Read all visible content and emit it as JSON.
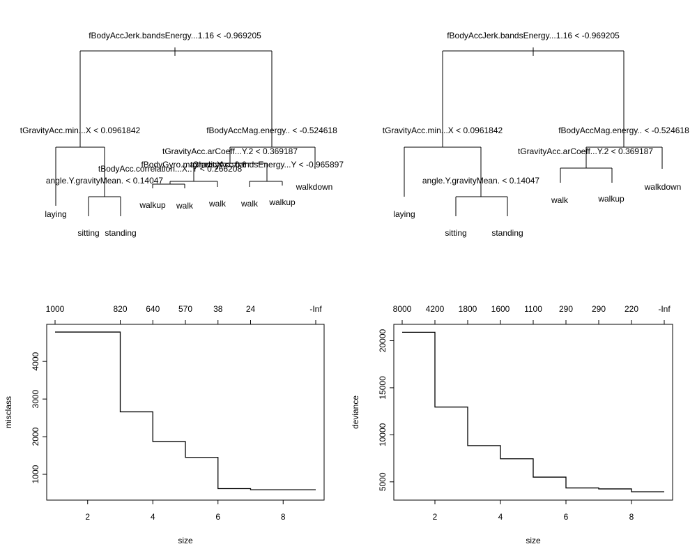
{
  "chart_data": [
    {
      "type": "tree",
      "nodes": [
        {
          "id": "root",
          "label": "fBodyAccJerk.bandsEnergy...1.16 < -0.969205"
        },
        {
          "id": "L",
          "label": "tGravityAcc.min...X < 0.0961842"
        },
        {
          "id": "R",
          "label": "fBodyAccMag.energy.. < -0.524618"
        },
        {
          "id": "LR",
          "label": "angle.Y.gravityMean. < 0.14047"
        },
        {
          "id": "RL",
          "label": "tGravityAcc.arCoeff...Y.2 < 0.369187"
        },
        {
          "id": "RLL",
          "label": "tBodyAcc.correlation...X..Y < 0.266208"
        },
        {
          "id": "RLLL",
          "label": "fBodyGyro.maxInds.X < -0.6"
        },
        {
          "id": "RLR",
          "label": "tGravityAcc.bandsEnergy...Y < -0.965897"
        }
      ],
      "leaves": [
        "laying",
        "sitting",
        "standing",
        "walkup",
        "walk",
        "walk",
        "walk",
        "walkup",
        "walkdown"
      ]
    },
    {
      "type": "tree",
      "nodes": [
        {
          "id": "root",
          "label": "fBodyAccJerk.bandsEnergy...1.16 < -0.969205"
        },
        {
          "id": "L",
          "label": "tGravityAcc.min...X < 0.0961842"
        },
        {
          "id": "R",
          "label": "fBodyAccMag.energy.. < -0.524618"
        },
        {
          "id": "LR",
          "label": "angle.Y.gravityMean. < 0.14047"
        },
        {
          "id": "RL",
          "label": "tGravityAcc.arCoeff...Y.2 < 0.369187"
        }
      ],
      "leaves": [
        "laying",
        "sitting",
        "standing",
        "walk",
        "walkup",
        "walkdown"
      ]
    },
    {
      "type": "step",
      "xlabel": "size",
      "ylabel": "misclass",
      "xlim": [
        1,
        9
      ],
      "ylim": [
        500,
        4800
      ],
      "x": [
        1,
        3,
        4,
        5,
        6,
        7,
        9
      ],
      "y": [
        4780,
        2660,
        1870,
        1450,
        620,
        590,
        590
      ],
      "xticks": [
        2,
        4,
        6,
        8
      ],
      "yticks": [
        1000,
        2000,
        3000,
        4000
      ],
      "top_axis": {
        "positions": [
          1,
          3,
          4,
          5,
          6,
          7,
          9
        ],
        "labels": [
          "1000",
          "820",
          "640",
          "570",
          "38",
          "24",
          "-Inf"
        ]
      }
    },
    {
      "type": "step",
      "xlabel": "size",
      "ylabel": "deviance",
      "xlim": [
        1,
        9
      ],
      "ylim": [
        3800,
        21000
      ],
      "x": [
        1,
        2,
        3,
        4,
        5,
        6,
        7,
        8,
        9
      ],
      "y": [
        20900,
        12950,
        8850,
        7450,
        5500,
        4350,
        4250,
        3950,
        3950
      ],
      "xticks": [
        2,
        4,
        6,
        8
      ],
      "yticks": [
        5000,
        10000,
        15000,
        20000
      ],
      "top_axis": {
        "positions": [
          1,
          2,
          3,
          4,
          5,
          6,
          7,
          8,
          9
        ],
        "labels": [
          "8000",
          "4200",
          "1800",
          "1600",
          "1100",
          "290",
          "290",
          "220",
          "-Inf"
        ]
      }
    }
  ]
}
